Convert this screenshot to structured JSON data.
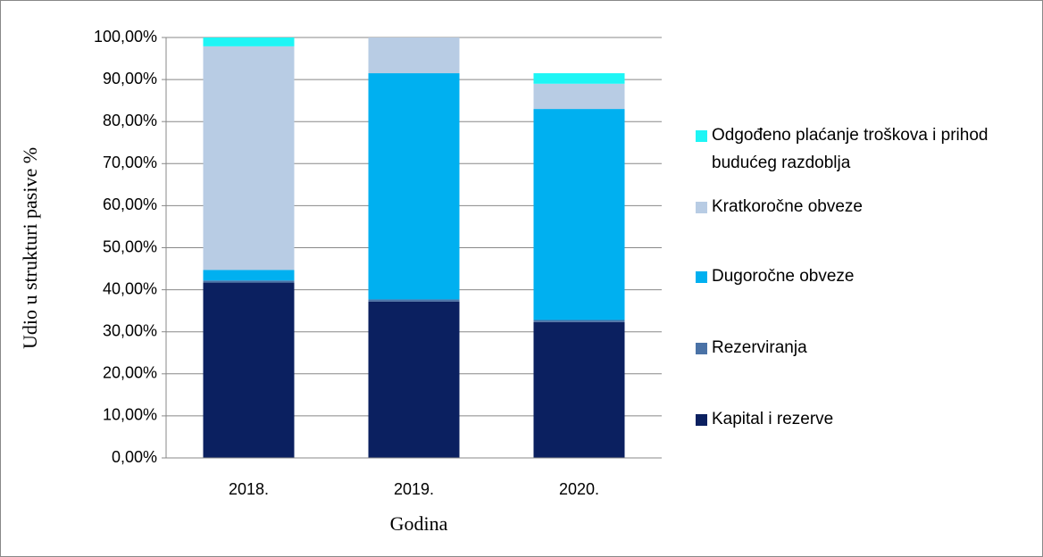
{
  "chart_data": {
    "type": "stacked_bar",
    "y_label": "Udio u strukturi pasive %",
    "x_label": "Godina",
    "categories": [
      "2018.",
      "2019.",
      "2020."
    ],
    "series": [
      {
        "name": "Kapital i rezerve",
        "color": "#0b2060",
        "values": [
          41.7,
          37.2,
          32.3
        ]
      },
      {
        "name": "Rezerviranja",
        "color": "#4a72a6",
        "values": [
          0.5,
          0.5,
          0.5
        ]
      },
      {
        "name": "Dugoročne obveze",
        "color": "#00b0f0",
        "values": [
          2.5,
          53.8,
          50.2
        ]
      },
      {
        "name": "Kratkoročne obveze",
        "color": "#b8cce4",
        "values": [
          53.2,
          8.5,
          6.0
        ]
      },
      {
        "name": "Odgođeno plaćanje troškova i prihod budućeg razdoblja",
        "color": "#1ef5f5",
        "values": [
          2.1,
          0,
          2.5
        ]
      }
    ],
    "ylim": [
      0,
      100
    ],
    "yticks": [
      {
        "value": 0,
        "label": "0,00%"
      },
      {
        "value": 10,
        "label": "10,00%"
      },
      {
        "value": 20,
        "label": "20,00%"
      },
      {
        "value": 30,
        "label": "30,00%"
      },
      {
        "value": 40,
        "label": "40,00%"
      },
      {
        "value": 50,
        "label": "50,00%"
      },
      {
        "value": 60,
        "label": "60,00%"
      },
      {
        "value": 70,
        "label": "70,00%"
      },
      {
        "value": 80,
        "label": "80,00%"
      },
      {
        "value": 90,
        "label": "90,00%"
      },
      {
        "value": 100,
        "label": "100,00%"
      }
    ],
    "grid": true,
    "legend": "right"
  }
}
